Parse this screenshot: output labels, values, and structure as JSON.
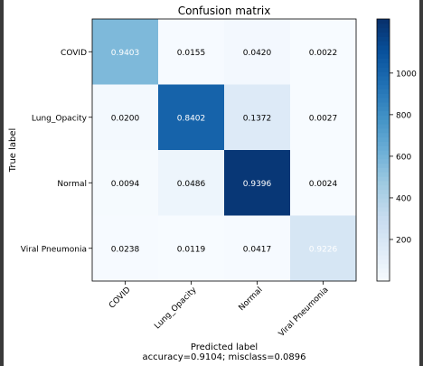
{
  "chart_data": {
    "type": "heatmap",
    "title": "Confusion matrix",
    "ylabel": "True label",
    "xlabel": "Predicted label",
    "subtitle": "accuracy=0.9104; misclass=0.0896",
    "rows": [
      "COVID",
      "Lung_Opacity",
      "Normal",
      "Viral Pneumonia"
    ],
    "columns": [
      "COVID",
      "Lung_Opacity",
      "Normal",
      "Viral Pneumonia"
    ],
    "cell_labels": [
      [
        "0.9403",
        "0.0155",
        "0.0420",
        "0.0022"
      ],
      [
        "0.0200",
        "0.8402",
        "0.1372",
        "0.0027"
      ],
      [
        "0.0094",
        "0.0486",
        "0.9396",
        "0.0024"
      ],
      [
        "0.0238",
        "0.0119",
        "0.0417",
        "0.9226"
      ]
    ],
    "values": [
      [
        0.9403,
        0.0155,
        0.042,
        0.0022
      ],
      [
        0.02,
        0.8402,
        0.1372,
        0.0027
      ],
      [
        0.0094,
        0.0486,
        0.9396,
        0.0024
      ],
      [
        0.0238,
        0.0119,
        0.0417,
        0.9226
      ]
    ],
    "colormap": "Blues",
    "colorbar": {
      "range": [
        0,
        1260
      ],
      "ticks": [
        200,
        400,
        600,
        800,
        1000
      ],
      "tick_labels": [
        "200",
        "400",
        "600",
        "800",
        "1000"
      ]
    },
    "cell_counts_estimated": [
      [
        570,
        9,
        25,
        1
      ],
      [
        24,
        1012,
        165,
        3
      ],
      [
        12,
        63,
        1226,
        3
      ],
      [
        5,
        3,
        9,
        208
      ]
    ],
    "grid": false
  }
}
